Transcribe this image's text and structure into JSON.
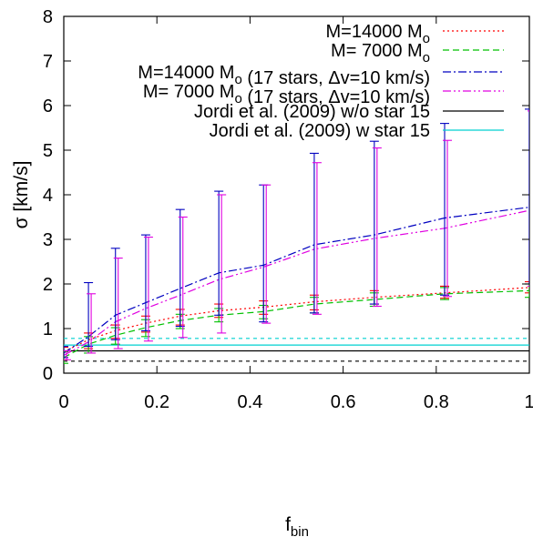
{
  "chart_data": {
    "type": "line",
    "xlabel": {
      "main": "f",
      "sub": "bin"
    },
    "ylabel": "σ [km/s]",
    "xlim": [
      0,
      1
    ],
    "ylim": [
      0,
      8
    ],
    "x_ticks": [
      "0",
      "0.2",
      "0.4",
      "0.6",
      "0.8",
      "1"
    ],
    "x_tick_values": [
      0,
      0.2,
      0.4,
      0.6,
      0.8,
      1
    ],
    "y_ticks": [
      "0",
      "1",
      "2",
      "3",
      "4",
      "5",
      "6",
      "7",
      "8"
    ],
    "y_tick_values": [
      0,
      1,
      2,
      3,
      4,
      5,
      6,
      7,
      8
    ],
    "grid": false,
    "legend_position": "top-right",
    "legend": [
      {
        "parts": [
          {
            "t": "M=14000 M"
          },
          {
            "t": "o",
            "sub": true
          }
        ]
      },
      {
        "parts": [
          {
            "t": "M=  7000 M"
          },
          {
            "t": "o",
            "sub": true
          }
        ]
      },
      {
        "parts": [
          {
            "t": "M=14000 M"
          },
          {
            "t": "o",
            "sub": true
          },
          {
            "t": " (17 stars, Δv=10 km/s)"
          }
        ]
      },
      {
        "parts": [
          {
            "t": "M=  7000 M"
          },
          {
            "t": "o",
            "sub": true
          },
          {
            "t": " (17 stars, Δv=10 km/s)"
          }
        ]
      },
      {
        "parts": [
          {
            "t": "Jordi et al. (2009) w/o star 15"
          }
        ]
      },
      {
        "parts": [
          {
            "t": "Jordi et al. (2009)   w  star 15"
          }
        ]
      }
    ],
    "x": [
      0,
      0.053,
      0.111,
      0.176,
      0.25,
      0.333,
      0.429,
      0.538,
      0.667,
      0.818,
      1.0
    ],
    "series": [
      {
        "color": "#ff0000",
        "dash": "dotted",
        "values": [
          0.48,
          0.75,
          0.95,
          1.12,
          1.28,
          1.4,
          1.48,
          1.6,
          1.7,
          1.8,
          1.92
        ],
        "err_lo": [
          0.3,
          0.55,
          0.78,
          0.92,
          1.08,
          1.25,
          1.32,
          1.42,
          1.55,
          1.68,
          1.8
        ],
        "err_hi": [
          0.58,
          0.9,
          1.08,
          1.28,
          1.43,
          1.55,
          1.62,
          1.75,
          1.85,
          1.95,
          2.05
        ]
      },
      {
        "color": "#00c000",
        "dash": "dashed",
        "values": [
          0.35,
          0.65,
          0.85,
          1.02,
          1.18,
          1.3,
          1.38,
          1.55,
          1.65,
          1.78,
          1.85
        ],
        "err_lo": [
          0.22,
          0.45,
          0.65,
          0.82,
          1.0,
          1.15,
          1.22,
          1.35,
          1.5,
          1.65,
          1.7
        ],
        "err_hi": [
          0.48,
          0.82,
          1.02,
          1.2,
          1.32,
          1.45,
          1.52,
          1.7,
          1.8,
          1.92,
          2.0
        ]
      },
      {
        "color": "#0000c0",
        "dash": "dashdot",
        "values": [
          0.45,
          0.82,
          1.3,
          1.58,
          1.9,
          2.25,
          2.42,
          2.88,
          3.1,
          3.48,
          3.72
        ],
        "err_lo": [
          0.35,
          0.6,
          0.75,
          0.95,
          1.05,
          1.3,
          1.15,
          1.35,
          1.55,
          1.75,
          2.0
        ],
        "err_hi": [
          0.6,
          2.03,
          2.8,
          3.1,
          3.67,
          4.08,
          4.22,
          4.93,
          5.2,
          5.6,
          5.92
        ]
      },
      {
        "color": "#e000e0",
        "dash": "dashdotdot",
        "values": [
          0.4,
          0.7,
          1.15,
          1.45,
          1.75,
          2.1,
          2.38,
          2.78,
          3.02,
          3.25,
          3.65
        ],
        "err_lo": [
          0.3,
          0.45,
          0.55,
          0.72,
          0.8,
          0.9,
          1.12,
          1.32,
          1.5,
          1.72,
          1.95
        ],
        "err_hi": [
          0.5,
          1.78,
          2.58,
          3.05,
          3.5,
          4.0,
          4.22,
          4.72,
          5.05,
          5.22,
          5.88
        ]
      }
    ],
    "reference_lines": [
      {
        "color": "#000000",
        "value": 0.5,
        "band": [
          0.27,
          0.5
        ]
      },
      {
        "color": "#00d0d0",
        "value": 0.63,
        "band": [
          0.63,
          0.78
        ]
      }
    ]
  }
}
